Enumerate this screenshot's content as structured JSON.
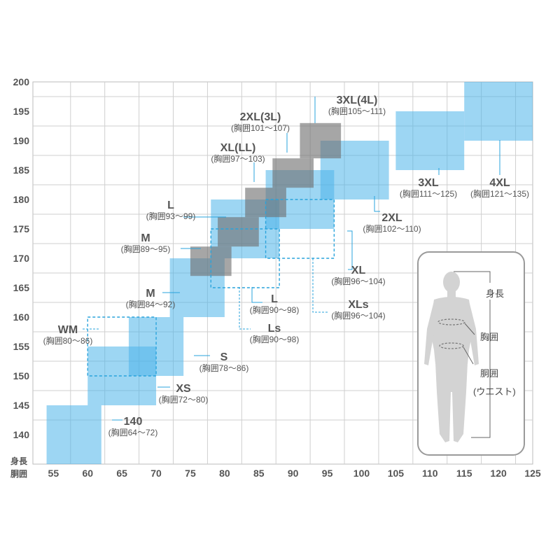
{
  "chart_data": {
    "type": "size-chart",
    "xlabel": "胴囲",
    "ylabel": "身長",
    "xlim": [
      52,
      125
    ],
    "ylim": [
      135,
      200
    ],
    "x_ticks": [
      55,
      60,
      65,
      70,
      75,
      80,
      85,
      90,
      95,
      100,
      105,
      110,
      115,
      120,
      125
    ],
    "y_ticks": [
      140,
      145,
      150,
      155,
      160,
      165,
      170,
      175,
      180,
      185,
      190,
      195,
      200
    ],
    "colors": {
      "blue": "#4db5ea",
      "gray": "#6f6f6f",
      "dashed": "#29a3dc",
      "grid": "#cfcfcf"
    },
    "sizes": [
      {
        "id": "140",
        "style": "blue",
        "chest": [
          54,
          62
        ],
        "height": [
          135,
          145
        ],
        "label": "140",
        "range": "(胸囲64～72)"
      },
      {
        "id": "XS",
        "style": "blue",
        "chest": [
          60,
          70
        ],
        "height": [
          145,
          155
        ],
        "label": "XS",
        "range": "(胸囲72～80)"
      },
      {
        "id": "S",
        "style": "blue",
        "chest": [
          66,
          74
        ],
        "height": [
          150,
          160
        ],
        "label": "S",
        "range": "(胸囲78～86)"
      },
      {
        "id": "M",
        "style": "blue",
        "chest": [
          72,
          80
        ],
        "height": [
          160,
          170
        ],
        "label": "M",
        "range": "(胸囲84～92)"
      },
      {
        "id": "L",
        "style": "blue",
        "chest": [
          78,
          88
        ],
        "height": [
          170,
          180
        ],
        "label": "L",
        "range": "(胸囲90～98)"
      },
      {
        "id": "XL",
        "style": "blue",
        "chest": [
          86,
          96
        ],
        "height": [
          175,
          185
        ],
        "label": "XL",
        "range": "(胸囲96～104)"
      },
      {
        "id": "2XL",
        "style": "blue",
        "chest": [
          94,
          104
        ],
        "height": [
          180,
          190
        ],
        "label": "2XL",
        "range": "(胸囲102～110)"
      },
      {
        "id": "3XL",
        "style": "blue",
        "chest": [
          105,
          115
        ],
        "height": [
          185,
          195
        ],
        "label": "3XL",
        "range": "(胸囲111～125)"
      },
      {
        "id": "4XL",
        "style": "blue",
        "chest": [
          115,
          125
        ],
        "height": [
          190,
          200
        ],
        "label": "4XL",
        "range": "(胸囲121～135)"
      },
      {
        "id": "WM",
        "style": "dashed",
        "chest": [
          60,
          70
        ],
        "height": [
          150,
          160
        ],
        "label": "WM",
        "range": "(胸囲80～86)"
      },
      {
        "id": "Ls",
        "style": "dashed",
        "chest": [
          78,
          88
        ],
        "height": [
          165,
          175
        ],
        "label": "Ls",
        "range": "(胸囲90～98)"
      },
      {
        "id": "XLs",
        "style": "dashed",
        "chest": [
          86,
          96
        ],
        "height": [
          170,
          180
        ],
        "label": "XLs",
        "range": "(胸囲96～104)"
      },
      {
        "id": "W-M",
        "style": "gray",
        "chest": [
          75,
          81
        ],
        "height": [
          167,
          172
        ],
        "label": "M",
        "range": "(胸囲89～95)"
      },
      {
        "id": "W-L",
        "style": "gray",
        "chest": [
          79,
          85
        ],
        "height": [
          172,
          177
        ],
        "label": "L",
        "range": "(胸囲93～99)"
      },
      {
        "id": "W-XL",
        "style": "gray",
        "chest": [
          83,
          89
        ],
        "height": [
          177,
          182
        ],
        "label": "XL(LL)",
        "range": "(胸囲97～103)"
      },
      {
        "id": "W-2XL",
        "style": "gray",
        "chest": [
          87,
          93
        ],
        "height": [
          182,
          187
        ],
        "label": "2XL(3L)",
        "range": "(胸囲101～107)"
      },
      {
        "id": "W-3XL",
        "style": "gray",
        "chest": [
          91,
          97
        ],
        "height": [
          187,
          193
        ],
        "label": "3XL(4L)",
        "range": "(胸囲105～111)"
      }
    ],
    "figure": {
      "labels": [
        "身長",
        "胸囲",
        "胴囲",
        "(ウエスト)"
      ]
    }
  }
}
